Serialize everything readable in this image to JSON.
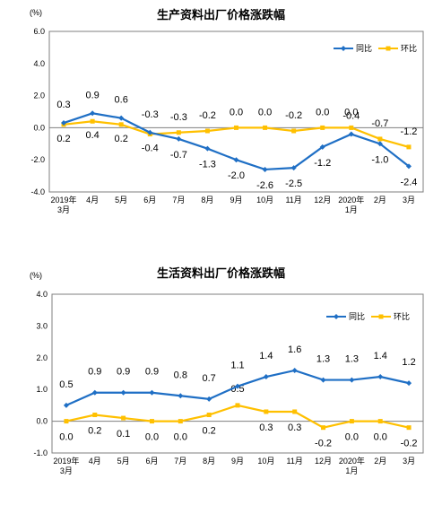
{
  "chart_data": [
    {
      "type": "line",
      "title": "生产资料出厂价格涨跌幅",
      "unit": "(%)",
      "ylim": [
        -4.0,
        6.0
      ],
      "yticks": [
        "6.0",
        "4.0",
        "2.0",
        "0.0",
        "-2.0",
        "-4.0"
      ],
      "categories": [
        "2019年\n3月",
        "4月",
        "5月",
        "6月",
        "7月",
        "8月",
        "9月",
        "10月",
        "11月",
        "12月",
        "2020年\n1月",
        "2月",
        "3月"
      ],
      "series": [
        {
          "name": "同比",
          "color": "#1f6fc5",
          "values": [
            0.3,
            0.9,
            0.6,
            -0.3,
            -0.7,
            -1.3,
            -2.0,
            -2.6,
            -2.5,
            -1.2,
            -0.4,
            -1.0,
            -2.4
          ],
          "labels": [
            "0.3",
            "0.9",
            "0.6",
            "-0.3",
            "-0.7",
            "-1.3",
            "-2.0",
            "-2.6",
            "-2.5",
            "-1.2",
            "-0.4",
            "-1.0",
            "-2.4"
          ]
        },
        {
          "name": "环比",
          "color": "#ffc000",
          "values": [
            0.2,
            0.4,
            0.2,
            -0.4,
            -0.3,
            -0.2,
            0.0,
            0.0,
            -0.2,
            0.0,
            0.0,
            -0.7,
            -1.2
          ],
          "labels": [
            "0.2",
            "0.4",
            "0.2",
            "-0.4",
            "-0.3",
            "-0.2",
            "0.0",
            "0.0",
            "-0.2",
            "0.0",
            "0.0",
            "-0.7",
            "-1.2"
          ]
        }
      ],
      "legend": "top-right",
      "grid": false
    },
    {
      "type": "line",
      "title": "生活资料出厂价格涨跌幅",
      "unit": "(%)",
      "ylim": [
        -1.0,
        4.0
      ],
      "yticks": [
        "4.0",
        "3.0",
        "2.0",
        "1.0",
        "0.0",
        "-1.0"
      ],
      "categories": [
        "2019年\n3月",
        "4月",
        "5月",
        "6月",
        "7月",
        "8月",
        "9月",
        "10月",
        "11月",
        "12月",
        "2020年\n1月",
        "2月",
        "3月"
      ],
      "series": [
        {
          "name": "同比",
          "color": "#1f6fc5",
          "values": [
            0.5,
            0.9,
            0.9,
            0.9,
            0.8,
            0.7,
            1.1,
            1.4,
            1.6,
            1.3,
            1.3,
            1.4,
            1.2
          ],
          "labels": [
            "0.5",
            "0.9",
            "0.9",
            "0.9",
            "0.8",
            "0.7",
            "1.1",
            "1.4",
            "1.6",
            "1.3",
            "1.3",
            "1.4",
            "1.2"
          ]
        },
        {
          "name": "环比",
          "color": "#ffc000",
          "values": [
            0.0,
            0.2,
            0.1,
            0.0,
            0.0,
            0.2,
            0.5,
            0.3,
            0.3,
            -0.2,
            0.0,
            0.0,
            -0.2
          ],
          "labels": [
            "0.0",
            "0.2",
            "0.1",
            "0.0",
            "0.0",
            "0.2",
            "0.5",
            "0.3",
            "0.3",
            "-0.2",
            "0.0",
            "0.0",
            "-0.2"
          ]
        }
      ],
      "legend": "top-right",
      "grid": false
    }
  ]
}
